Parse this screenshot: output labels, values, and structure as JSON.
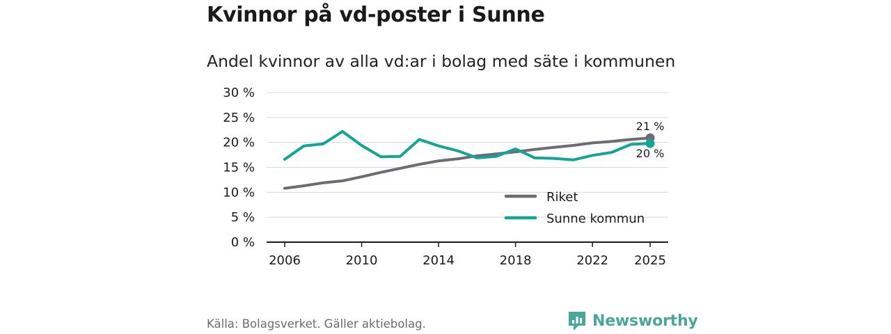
{
  "header": {
    "title": "Kvinnor på vd-poster i Sunne",
    "subtitle": "Andel kvinnor av alla vd:ar i bolag med säte i kommunen"
  },
  "footer": {
    "source": "Källa: Bolagsverket. Gäller aktiebolag.",
    "brand": "Newsworthy"
  },
  "colors": {
    "riket": "#6e6b73",
    "sunne": "#12a497",
    "grid": "#d9d9d9",
    "axis": "#1a1a1a",
    "brand": "#4aa69b"
  },
  "chart_data": {
    "type": "line",
    "title": "Andel kvinnor av alla vd:ar i bolag med säte i kommunen",
    "xlabel": "",
    "ylabel": "",
    "x": [
      2006,
      2007,
      2008,
      2009,
      2010,
      2011,
      2012,
      2013,
      2014,
      2015,
      2016,
      2017,
      2018,
      2019,
      2020,
      2021,
      2022,
      2023,
      2024,
      2025
    ],
    "xlim": [
      2006,
      2025
    ],
    "ylim": [
      0,
      30
    ],
    "xticks": [
      2006,
      2010,
      2014,
      2018,
      2022,
      2025
    ],
    "xtick_labels": [
      "2006",
      "2010",
      "2014",
      "2018",
      "2022",
      "2025"
    ],
    "yticks": [
      0,
      5,
      10,
      15,
      20,
      25,
      30
    ],
    "ytick_labels": [
      "0 %",
      "5 %",
      "10 %",
      "15 %",
      "20 %",
      "25 %",
      "30 %"
    ],
    "grid": true,
    "legend_position": "bottom-right",
    "series": [
      {
        "name": "Riket",
        "values": [
          10.8,
          11.3,
          11.9,
          12.3,
          13.1,
          14.0,
          14.8,
          15.6,
          16.3,
          16.7,
          17.3,
          17.7,
          18.1,
          18.6,
          19.0,
          19.4,
          19.9,
          20.2,
          20.6,
          20.9
        ],
        "end_label": "21 %"
      },
      {
        "name": "Sunne kommun",
        "values": [
          16.6,
          19.3,
          19.7,
          22.2,
          19.4,
          17.1,
          17.2,
          20.6,
          19.3,
          18.3,
          16.9,
          17.2,
          18.7,
          16.9,
          16.8,
          16.5,
          17.4,
          18.0,
          19.6,
          19.8
        ],
        "end_label": "20 %"
      }
    ]
  }
}
